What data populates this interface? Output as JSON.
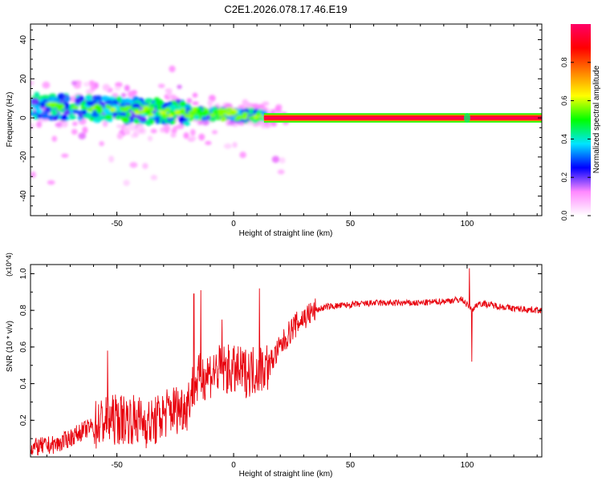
{
  "title": "C2E1.2026.078.17.46.E19",
  "chart_data": [
    {
      "type": "heatmap",
      "xlabel": "Height of straight line (km)",
      "ylabel": "Frequency (Hz)",
      "xlim": [
        -87,
        132
      ],
      "ylim": [
        -50,
        48
      ],
      "xticks": [
        -50,
        0,
        50,
        100
      ],
      "yticks": [
        -40,
        -20,
        0,
        20,
        40
      ],
      "colorbar": {
        "label": "Normalized spectral amplitude",
        "range": [
          0,
          1
        ],
        "ticks": [
          0.0,
          0.2,
          0.4,
          0.6,
          0.8
        ],
        "tick_labels": [
          "0.0",
          "0.2",
          "0.4",
          "0.6",
          "0.8"
        ],
        "stops": [
          "#ffffff",
          "#ff88ff",
          "#0000ff",
          "#00e5ff",
          "#00ff00",
          "#ffff00",
          "#ff8000",
          "#ff0000",
          "#ff0066"
        ]
      },
      "features": [
        {
          "name": "continuous-band",
          "x_start": 13,
          "x_end": 132,
          "y_center": 0,
          "y_halfwidth": 1.5,
          "amplitude": 1.0
        },
        {
          "name": "descending-echo-track",
          "x_start": -87,
          "x_end": 13,
          "y_start": 6,
          "y_end": 1,
          "amplitude": 0.5
        },
        {
          "name": "burst",
          "x": 100,
          "y": 0,
          "amplitude": 0.45
        }
      ]
    },
    {
      "type": "line",
      "xlabel": "Height of straight line (km)",
      "ylabel": "SNR (10 * v/v)",
      "y_multiplier": "(x10^4)",
      "xlim": [
        -87,
        132
      ],
      "ylim": [
        0,
        1.05
      ],
      "xticks": [
        -50,
        0,
        50,
        100
      ],
      "yticks": [
        0.2,
        0.4,
        0.6,
        0.8,
        1.0
      ],
      "ytick_labels": [
        "0.2",
        "0.4",
        "0.6",
        "0.8",
        "1.0"
      ],
      "series": [
        {
          "name": "SNR",
          "color": "#e8000b",
          "x": [
            -87,
            -75,
            -65,
            -55,
            -45,
            -35,
            -28,
            -20,
            -17,
            -12,
            -5,
            5,
            15,
            20,
            25,
            30,
            35,
            40,
            50,
            60,
            70,
            80,
            90,
            98,
            102,
            105,
            110,
            120,
            132
          ],
          "y": [
            0.05,
            0.07,
            0.14,
            0.2,
            0.21,
            0.18,
            0.25,
            0.28,
            0.4,
            0.45,
            0.48,
            0.46,
            0.5,
            0.6,
            0.7,
            0.76,
            0.8,
            0.82,
            0.83,
            0.84,
            0.84,
            0.84,
            0.85,
            0.86,
            0.8,
            0.84,
            0.83,
            0.81,
            0.8
          ]
        }
      ],
      "spikes": [
        {
          "x": -54,
          "y": 0.58
        },
        {
          "x": -17,
          "y": 0.89
        },
        {
          "x": -14,
          "y": 0.91
        },
        {
          "x": -5,
          "y": 0.75
        },
        {
          "x": 11,
          "y": 0.92
        },
        {
          "x": 101,
          "y": 1.03
        },
        {
          "x": 102,
          "y": 0.52
        }
      ]
    }
  ]
}
